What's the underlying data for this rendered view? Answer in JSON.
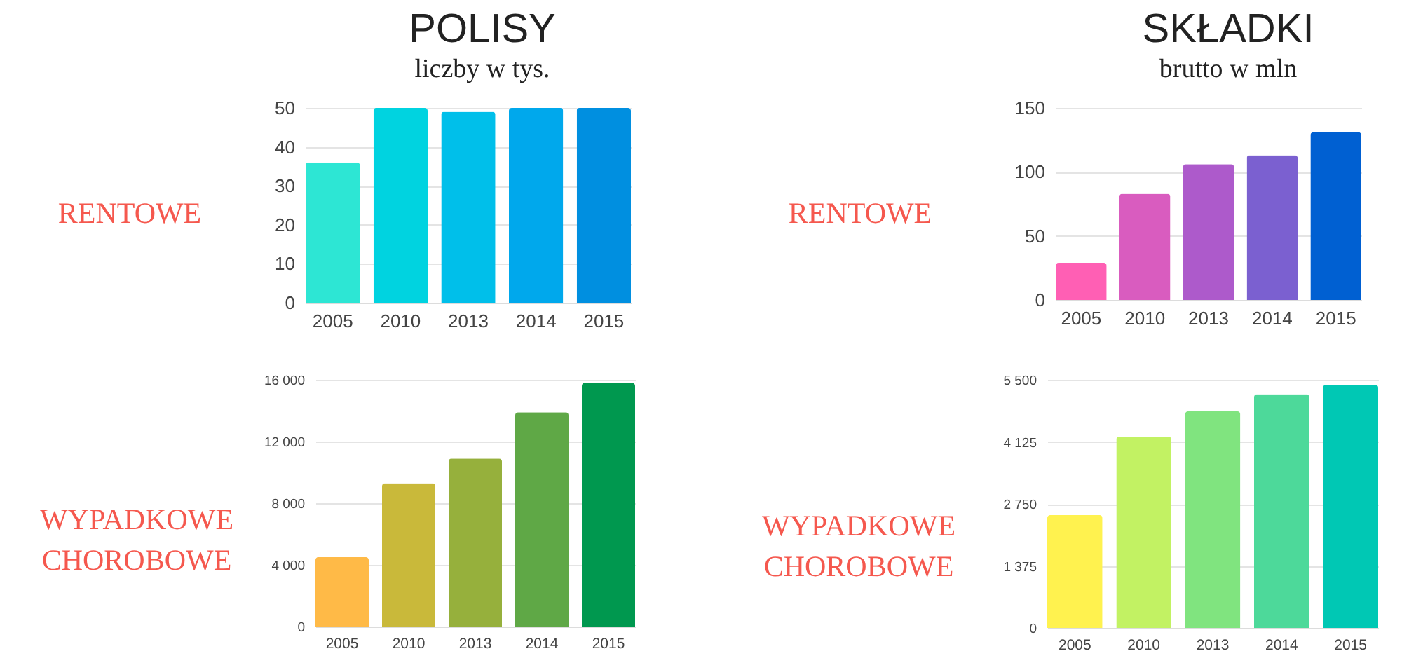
{
  "chart_data": [
    {
      "type": "bar",
      "title": "POLISY",
      "subtitle": "liczby w tys.",
      "ylabel": "RENTOWE",
      "categories": [
        "2005",
        "2010",
        "2013",
        "2014",
        "2015"
      ],
      "values": [
        36,
        50,
        49,
        50,
        50
      ],
      "colors": [
        "#2de6d4",
        "#00d3e0",
        "#00bfea",
        "#00a8ec",
        "#008fe0"
      ],
      "ylim": [
        0,
        50
      ],
      "yticks": [
        0,
        10,
        20,
        30,
        40,
        50
      ],
      "grid": "y"
    },
    {
      "type": "bar",
      "title": "SKŁADKI",
      "subtitle": "brutto w mln",
      "ylabel": "RENTOWE",
      "categories": [
        "2005",
        "2010",
        "2013",
        "2014",
        "2015"
      ],
      "values": [
        29,
        83,
        106,
        113,
        131
      ],
      "colors": [
        "#ff5fb4",
        "#d95cbf",
        "#ad5acb",
        "#7b60d0",
        "#0060d2"
      ],
      "ylim": [
        0,
        150
      ],
      "yticks": [
        0,
        50,
        100,
        150
      ],
      "grid": "y"
    },
    {
      "type": "bar",
      "ylabel": "WYPADKOWE\nCHOROBOWE",
      "categories": [
        "2005",
        "2010",
        "2013",
        "2014",
        "2015"
      ],
      "values": [
        4500,
        9300,
        10900,
        13900,
        15800
      ],
      "colors": [
        "#ffba47",
        "#c9b93a",
        "#96b03c",
        "#5fa846",
        "#00984f"
      ],
      "ylim": [
        0,
        16000
      ],
      "yticks": [
        0,
        {
          "value": 4000,
          "label": "4 000"
        },
        {
          "value": 8000,
          "label": "8 000"
        },
        {
          "value": 12000,
          "label": "12 000"
        },
        {
          "value": 16000,
          "label": "16 000"
        }
      ],
      "grid": "y"
    },
    {
      "type": "bar",
      "ylabel": "WYPADKOWE\nCHOROBOWE",
      "categories": [
        "2005",
        "2010",
        "2013",
        "2014",
        "2015"
      ],
      "values": [
        2500,
        4240,
        4800,
        5180,
        5390
      ],
      "colors": [
        "#fff24f",
        "#c2f263",
        "#80e47f",
        "#4dd99a",
        "#00c8b4"
      ],
      "ylim": [
        0,
        5500
      ],
      "yticks": [
        0,
        {
          "value": 1375,
          "label": "1 375"
        },
        {
          "value": 2750,
          "label": "2 750"
        },
        {
          "value": 4125,
          "label": "4 125"
        },
        {
          "value": 5500,
          "label": "5 500"
        }
      ],
      "grid": "y"
    }
  ]
}
